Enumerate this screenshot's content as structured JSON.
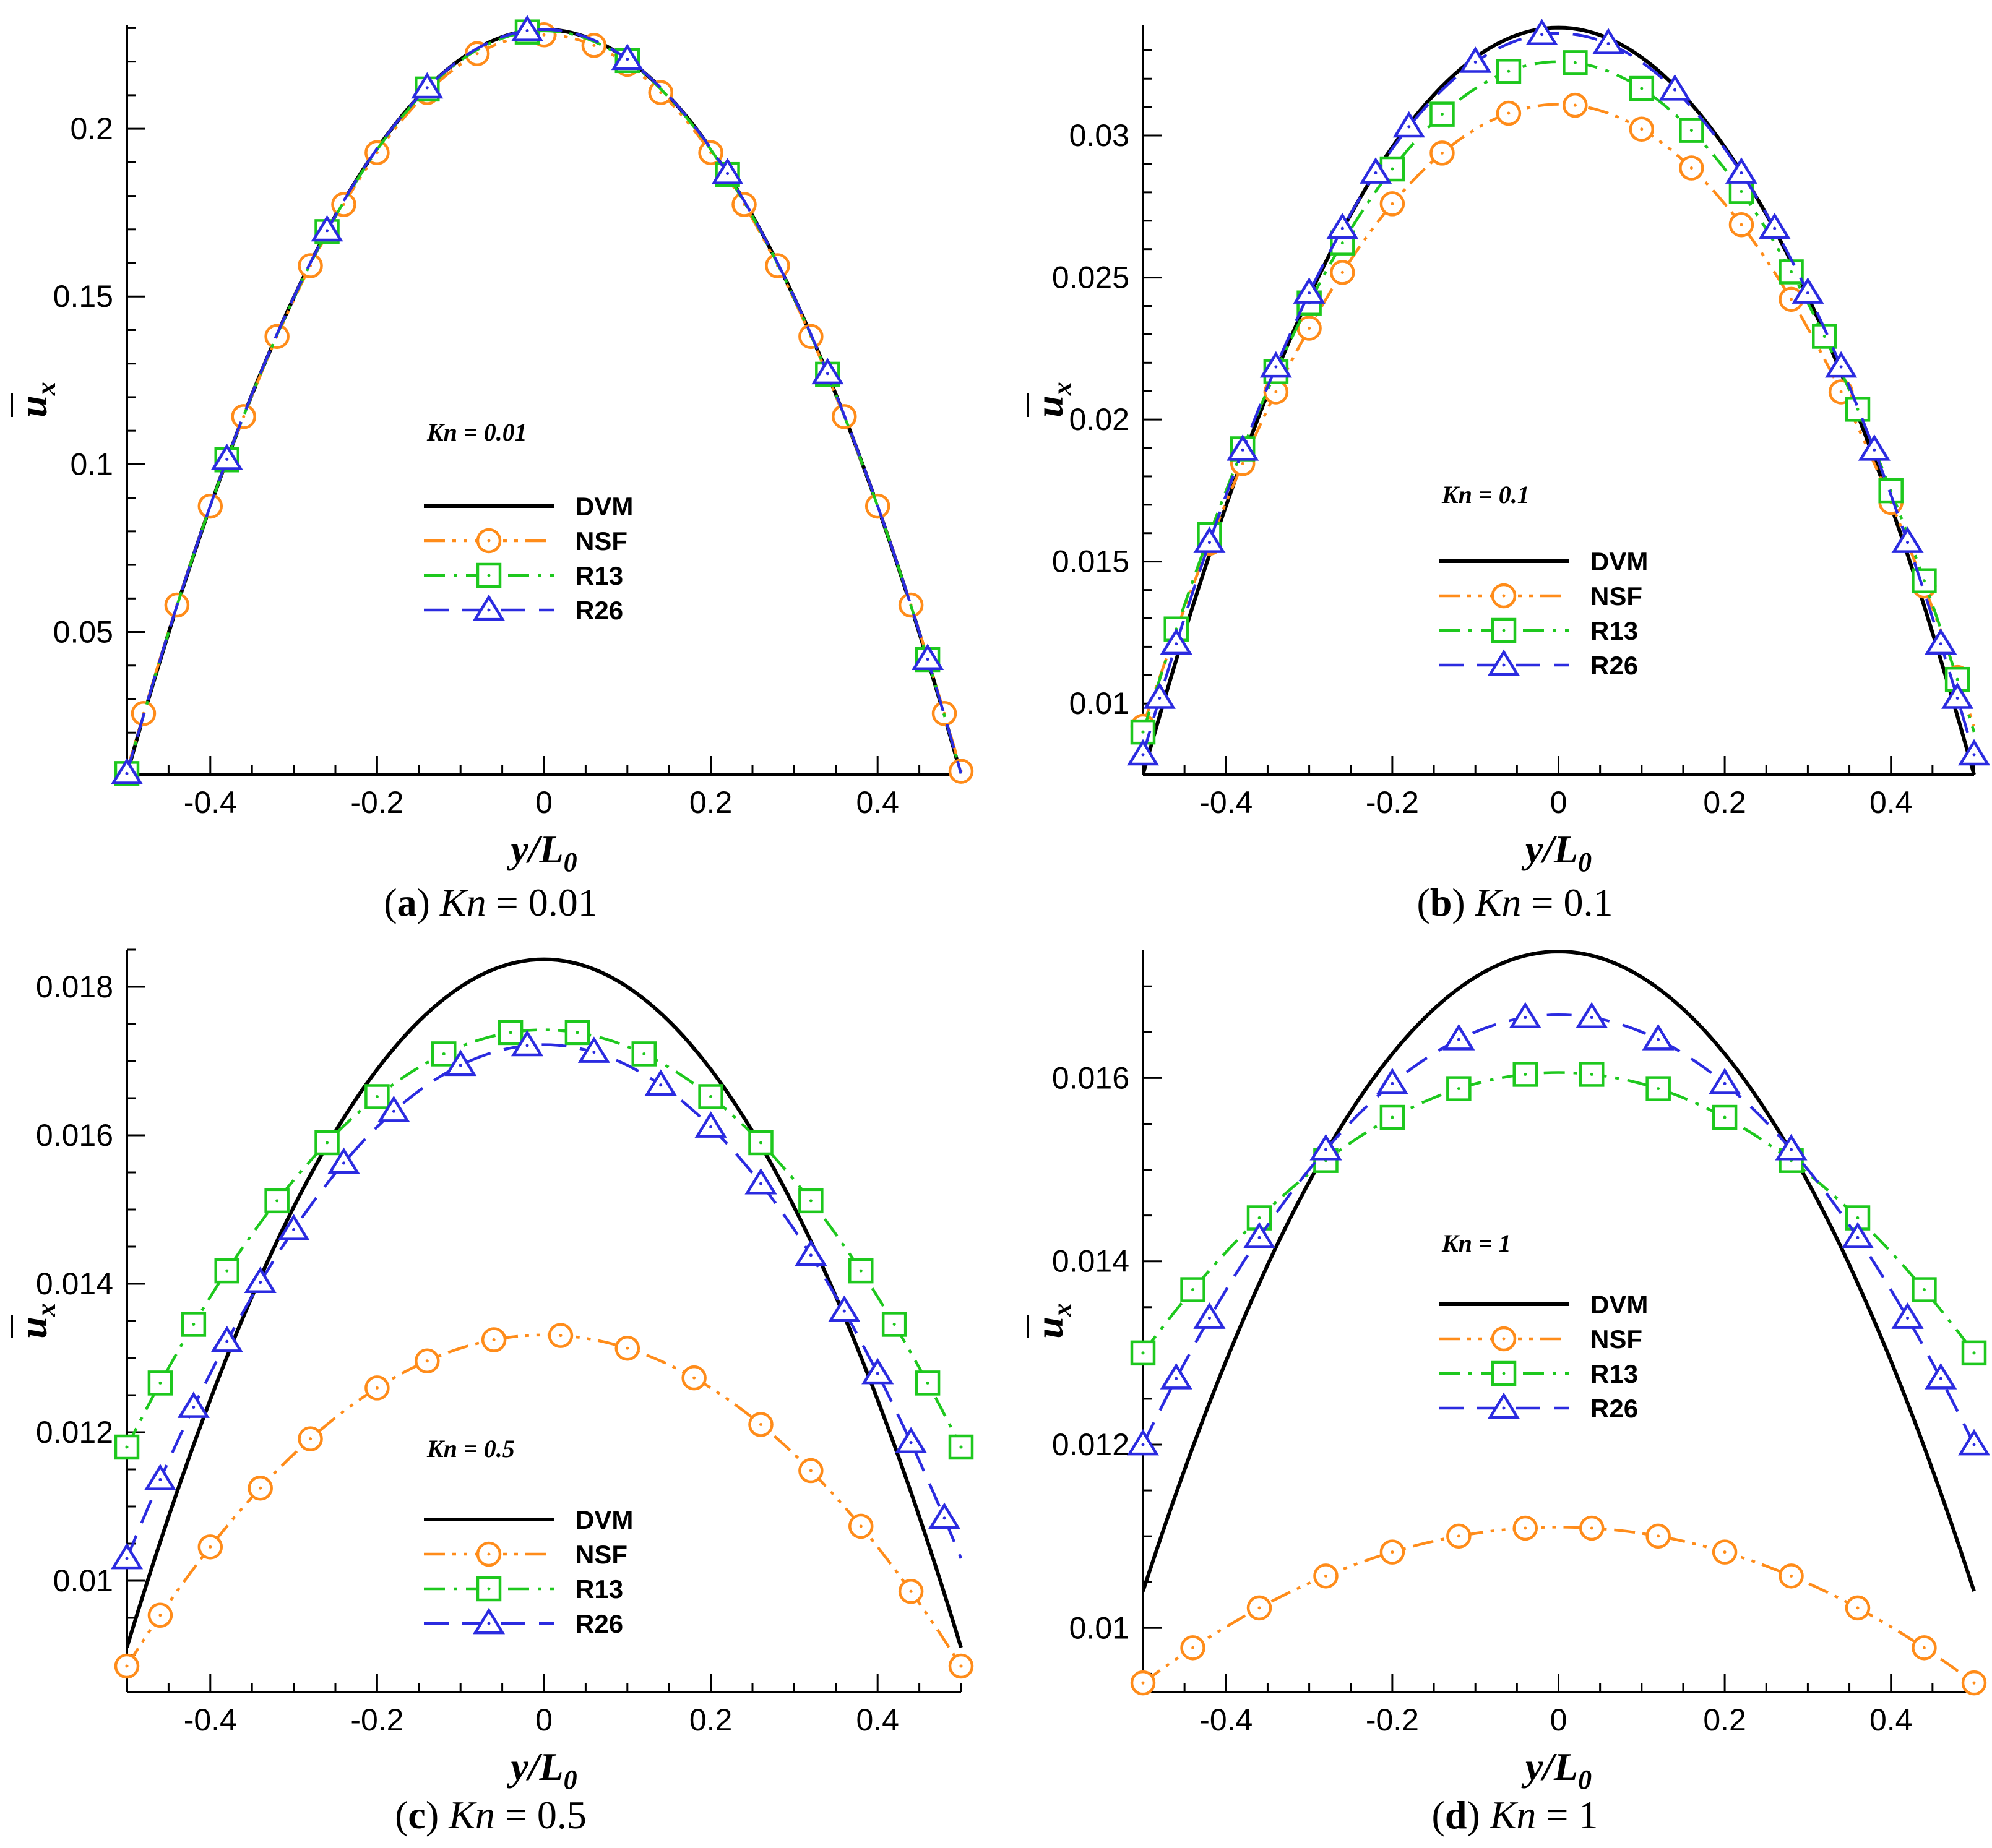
{
  "chart_data": [
    {
      "type": "line",
      "panel": "a",
      "caption": {
        "letter": "a",
        "text": "Kn = 0.01"
      },
      "title": "Kn = 0.01",
      "xlabel": "y/L0",
      "ylabel": "ux",
      "xlim": [
        -0.5,
        0.5
      ],
      "ylim": [
        0.0075,
        0.231
      ],
      "xticks": [
        -0.4,
        -0.2,
        0,
        0.2,
        0.4
      ],
      "xtick_labels": [
        "-0.4",
        "-0.2",
        "0",
        "0.2",
        "0.4"
      ],
      "yticks": [
        0.05,
        0.1,
        0.15,
        0.2
      ],
      "ytick_labels": [
        "0.05",
        "0.1",
        "0.15",
        "0.2"
      ],
      "yminor": 0.01,
      "series": [
        {
          "name": "DVM",
          "color": "#000000",
          "dash": "",
          "marker": "none",
          "profile": {
            "uw": 0.0075,
            "umax": 0.2296,
            "p": 2
          }
        },
        {
          "name": "NSF",
          "color": "#ff8c1a",
          "dash": "dashdotdot",
          "marker": "circle",
          "markers_x": [
            -0.48,
            -0.44,
            -0.4,
            -0.36,
            -0.32,
            -0.28,
            -0.24,
            -0.2,
            -0.14,
            -0.08,
            0.0,
            0.06,
            0.1,
            0.14,
            0.2,
            0.24,
            0.28,
            0.32,
            0.36,
            0.4,
            0.44,
            0.48,
            0.5
          ],
          "profile": {
            "uw": 0.0085,
            "umax": 0.228,
            "p": 2
          }
        },
        {
          "name": "R13",
          "color": "#1ec81e",
          "dash": "dashdot",
          "marker": "square",
          "markers_x": [
            -0.5,
            -0.38,
            -0.26,
            -0.14,
            -0.02,
            0.1,
            0.22,
            0.34,
            0.46
          ],
          "profile": {
            "uw": 0.0078,
            "umax": 0.2292,
            "p": 2
          }
        },
        {
          "name": "R26",
          "color": "#2b2be0",
          "dash": "dash",
          "marker": "triangle",
          "markers_x": [
            -0.5,
            -0.38,
            -0.26,
            -0.14,
            -0.02,
            0.1,
            0.22,
            0.34,
            0.46
          ],
          "profile": {
            "uw": 0.0078,
            "umax": 0.2296,
            "p": 2
          }
        }
      ]
    },
    {
      "type": "line",
      "panel": "b",
      "caption": {
        "letter": "b",
        "text": "Kn = 0.1"
      },
      "title": "Kn = 0.1",
      "xlabel": "y/L0",
      "ylabel": "ux",
      "xlim": [
        -0.5,
        0.5
      ],
      "ylim": [
        0.0075,
        0.0339
      ],
      "xticks": [
        -0.4,
        -0.2,
        0,
        0.2,
        0.4
      ],
      "xtick_labels": [
        "-0.4",
        "-0.2",
        "0",
        "0.2",
        "0.4"
      ],
      "yticks": [
        0.01,
        0.015,
        0.02,
        0.025,
        0.03
      ],
      "ytick_labels": [
        "0.01",
        "0.015",
        "0.02",
        "0.025",
        "0.03"
      ],
      "yminor": 0.001,
      "series": [
        {
          "name": "DVM",
          "color": "#000000",
          "dash": "",
          "marker": "none",
          "profile": {
            "uw": 0.0075,
            "umax": 0.0338,
            "p": 2
          }
        },
        {
          "name": "NSF",
          "color": "#ff8c1a",
          "dash": "dashdotdot",
          "marker": "circle",
          "markers_x": [
            -0.5,
            -0.46,
            -0.42,
            -0.38,
            -0.34,
            -0.3,
            -0.26,
            -0.2,
            -0.14,
            -0.06,
            0.02,
            0.1,
            0.16,
            0.22,
            0.28,
            0.34,
            0.4,
            0.44,
            0.48
          ],
          "profile": {
            "uw": 0.0092,
            "umax": 0.0311,
            "p": 2
          }
        },
        {
          "name": "R13",
          "color": "#1ec81e",
          "dash": "dashdot",
          "marker": "square",
          "markers_x": [
            -0.5,
            -0.46,
            -0.42,
            -0.38,
            -0.34,
            -0.3,
            -0.26,
            -0.2,
            -0.14,
            -0.06,
            0.02,
            0.1,
            0.16,
            0.22,
            0.28,
            0.32,
            0.36,
            0.4,
            0.44,
            0.48
          ],
          "profile": {
            "uw": 0.009,
            "umax": 0.0326,
            "p": 2
          }
        },
        {
          "name": "R26",
          "color": "#2b2be0",
          "dash": "dash",
          "marker": "triangle",
          "markers_x": [
            -0.5,
            -0.48,
            -0.46,
            -0.42,
            -0.38,
            -0.34,
            -0.3,
            -0.26,
            -0.22,
            -0.18,
            -0.1,
            -0.02,
            0.06,
            0.14,
            0.22,
            0.26,
            0.3,
            0.34,
            0.38,
            0.42,
            0.46,
            0.48,
            0.5
          ],
          "profile": {
            "uw": 0.0082,
            "umax": 0.0336,
            "p": 2
          }
        }
      ]
    },
    {
      "type": "line",
      "panel": "c",
      "caption": {
        "letter": "c",
        "text": "Kn = 0.5"
      },
      "title": "Kn = 0.5",
      "xlabel": "y/L0",
      "ylabel": "ux",
      "xlim": [
        -0.5,
        0.5
      ],
      "ylim": [
        0.0085,
        0.0185
      ],
      "xticks": [
        -0.4,
        -0.2,
        0,
        0.2,
        0.4
      ],
      "xtick_labels": [
        "-0.4",
        "-0.2",
        "0",
        "0.2",
        "0.4"
      ],
      "yticks": [
        0.01,
        0.012,
        0.014,
        0.016,
        0.018
      ],
      "ytick_labels": [
        "0.01",
        "0.012",
        "0.014",
        "0.016",
        "0.018"
      ],
      "yminor": 0.0005,
      "series": [
        {
          "name": "DVM",
          "color": "#000000",
          "dash": "",
          "marker": "none",
          "profile": {
            "uw": 0.0091,
            "umax": 0.01837,
            "p": 2
          }
        },
        {
          "name": "NSF",
          "color": "#ff8c1a",
          "dash": "dashdotdot",
          "marker": "circle",
          "markers_x": [
            -0.5,
            -0.46,
            -0.4,
            -0.34,
            -0.28,
            -0.2,
            -0.14,
            -0.06,
            0.02,
            0.1,
            0.18,
            0.26,
            0.32,
            0.38,
            0.44,
            0.5
          ],
          "profile": {
            "uw": 0.00885,
            "umax": 0.01331,
            "p": 2
          }
        },
        {
          "name": "R13",
          "color": "#1ec81e",
          "dash": "dashdot",
          "marker": "square",
          "markers_x": [
            -0.5,
            -0.46,
            -0.42,
            -0.38,
            -0.32,
            -0.26,
            -0.2,
            -0.12,
            -0.04,
            0.04,
            0.12,
            0.2,
            0.26,
            0.32,
            0.38,
            0.42,
            0.46,
            0.5
          ],
          "profile": {
            "uw": 0.0118,
            "umax": 0.01742,
            "p": 2
          }
        },
        {
          "name": "R26",
          "color": "#2b2be0",
          "dash": "dash",
          "marker": "triangle",
          "markers_x": [
            -0.5,
            -0.46,
            -0.42,
            -0.38,
            -0.34,
            -0.3,
            -0.24,
            -0.18,
            -0.1,
            -0.02,
            0.06,
            0.14,
            0.2,
            0.26,
            0.32,
            0.36,
            0.4,
            0.44,
            0.48
          ],
          "profile": {
            "uw": 0.0103,
            "umax": 0.01722,
            "p": 2
          }
        }
      ]
    },
    {
      "type": "line",
      "panel": "d",
      "caption": {
        "letter": "d",
        "text": "Kn = 1"
      },
      "title": "Kn = 1",
      "xlabel": "y/L0",
      "ylabel": "ux",
      "xlim": [
        -0.5,
        0.5
      ],
      "ylim": [
        0.0093,
        0.0174
      ],
      "xticks": [
        -0.4,
        -0.2,
        0,
        0.2,
        0.4
      ],
      "xtick_labels": [
        "-0.4",
        "-0.2",
        "0",
        "0.2",
        "0.4"
      ],
      "yticks": [
        0.01,
        0.012,
        0.014,
        0.016
      ],
      "ytick_labels": [
        "0.01",
        "0.012",
        "0.014",
        "0.016"
      ],
      "yminor": 0.0005,
      "series": [
        {
          "name": "DVM",
          "color": "#000000",
          "dash": "",
          "marker": "none",
          "profile": {
            "uw": 0.0104,
            "umax": 0.01738,
            "p": 2
          }
        },
        {
          "name": "NSF",
          "color": "#ff8c1a",
          "dash": "dashdotdot",
          "marker": "circle",
          "markers_x": [
            -0.5,
            -0.44,
            -0.36,
            -0.28,
            -0.2,
            -0.12,
            -0.04,
            0.04,
            0.12,
            0.2,
            0.28,
            0.36,
            0.44,
            0.5
          ],
          "profile": {
            "uw": 0.0094,
            "umax": 0.0111,
            "p": 2
          }
        },
        {
          "name": "R13",
          "color": "#1ec81e",
          "dash": "dashdot",
          "marker": "square",
          "markers_x": [
            -0.5,
            -0.44,
            -0.36,
            -0.28,
            -0.2,
            -0.12,
            -0.04,
            0.04,
            0.12,
            0.2,
            0.28,
            0.36,
            0.44,
            0.5
          ],
          "profile": {
            "uw": 0.013,
            "umax": 0.01606,
            "p": 2
          }
        },
        {
          "name": "R26",
          "color": "#2b2be0",
          "dash": "dash",
          "marker": "triangle",
          "markers_x": [
            -0.5,
            -0.46,
            -0.42,
            -0.36,
            -0.28,
            -0.2,
            -0.12,
            -0.04,
            0.04,
            0.12,
            0.2,
            0.28,
            0.36,
            0.42,
            0.46,
            0.5
          ],
          "profile": {
            "uw": 0.012,
            "umax": 0.01669,
            "p": 2
          }
        }
      ]
    }
  ]
}
